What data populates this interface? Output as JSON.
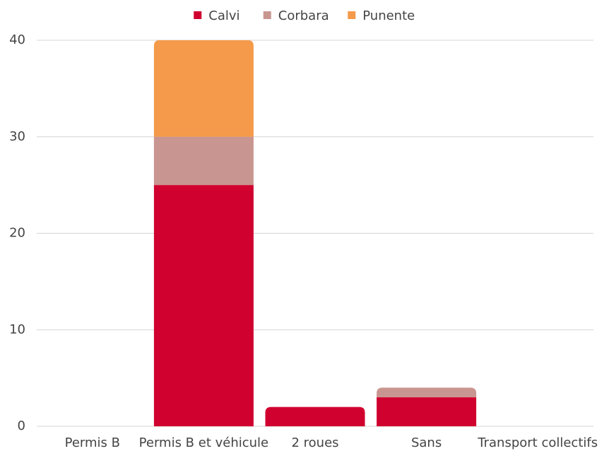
{
  "chart_data": {
    "type": "stacked_bar",
    "categories": [
      "Permis B",
      "Permis B et véhicule",
      "2 roues",
      "Sans",
      "Transport collectifs"
    ],
    "series": [
      {
        "name": "Calvi",
        "color": "#d0002f",
        "values": [
          0,
          25,
          2,
          3,
          0
        ]
      },
      {
        "name": "Corbara",
        "color": "#c99590",
        "values": [
          0,
          5,
          0,
          1,
          0
        ]
      },
      {
        "name": "Punente",
        "color": "#f59a4a",
        "values": [
          0,
          10,
          0,
          0,
          0
        ]
      }
    ],
    "ylim": [
      0,
      40
    ],
    "yticks": [
      0,
      10,
      20,
      30,
      40
    ],
    "grid": true,
    "legend": "top"
  }
}
